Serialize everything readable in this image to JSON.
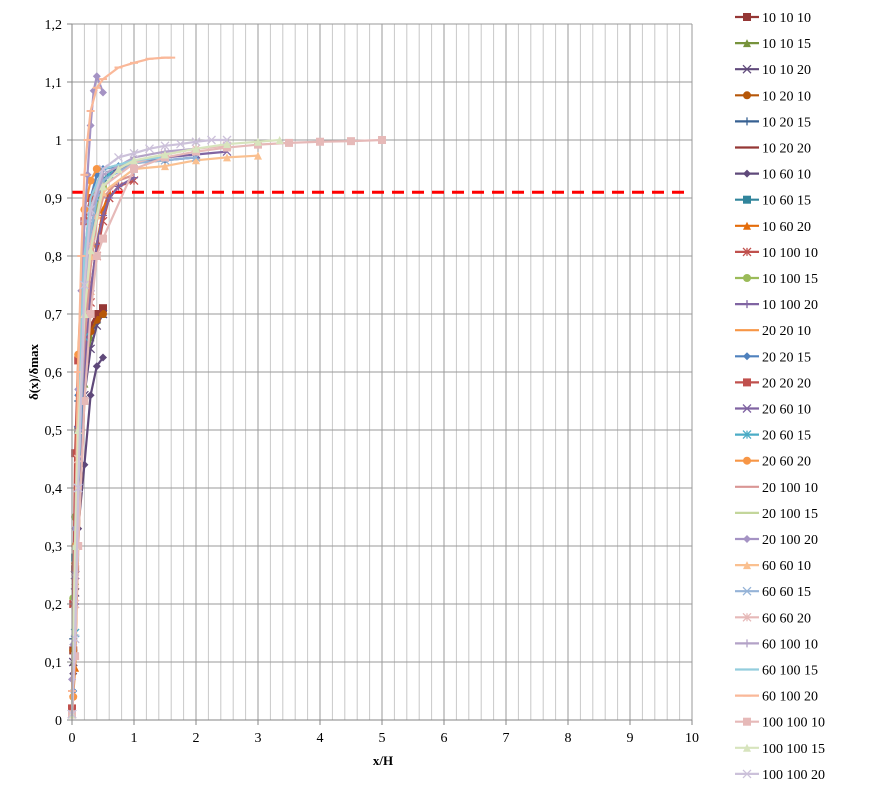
{
  "chart_data": {
    "type": "line",
    "title": "",
    "xlabel": "x/H",
    "ylabel": "δ(x)/δmax",
    "xlim": [
      0,
      10
    ],
    "ylim": [
      0,
      1.2
    ],
    "xticks": [
      "0",
      "1",
      "2",
      "3",
      "4",
      "5",
      "6",
      "7",
      "8",
      "9",
      "10"
    ],
    "yticks": [
      "0",
      "0,1",
      "0,2",
      "0,3",
      "0,4",
      "0,5",
      "0,6",
      "0,7",
      "0,8",
      "0,9",
      "1",
      "1,1",
      "1,2"
    ],
    "grid": true,
    "legend": "right",
    "reference_line": {
      "y": 0.91,
      "color": "#FF0000",
      "style": "dashed"
    },
    "series": [
      {
        "name": "10 10 10",
        "color": "#953735",
        "marker": "square",
        "x": [
          0,
          0.02,
          0.05,
          0.1,
          0.2,
          0.3,
          0.4,
          0.5
        ],
        "y": [
          0.01,
          0.12,
          0.26,
          0.46,
          0.62,
          0.68,
          0.7,
          0.71
        ]
      },
      {
        "name": "10 10 15",
        "color": "#77933C",
        "marker": "triangle",
        "x": [
          0,
          0.02,
          0.05,
          0.1,
          0.2,
          0.3,
          0.4,
          0.5
        ],
        "y": [
          0.01,
          0.1,
          0.24,
          0.42,
          0.58,
          0.66,
          0.69,
          0.7
        ]
      },
      {
        "name": "10 10 20",
        "color": "#604A7B",
        "marker": "x",
        "x": [
          0,
          0.02,
          0.05,
          0.1,
          0.2,
          0.3,
          0.4,
          0.5
        ],
        "y": [
          0.01,
          0.1,
          0.22,
          0.4,
          0.56,
          0.64,
          0.68,
          0.7
        ]
      },
      {
        "name": "10 20 10",
        "color": "#B65708",
        "marker": "circle",
        "x": [
          0,
          0.02,
          0.05,
          0.1,
          0.2,
          0.3,
          0.4,
          0.5
        ],
        "y": [
          0.01,
          0.12,
          0.27,
          0.46,
          0.62,
          0.67,
          0.69,
          0.7
        ]
      },
      {
        "name": "10 20 15",
        "color": "#376092",
        "marker": "plus",
        "x": [
          0,
          0.02,
          0.05,
          0.1,
          0.2,
          0.3,
          0.4,
          0.5,
          0.75,
          1
        ],
        "y": [
          0.01,
          0.14,
          0.3,
          0.55,
          0.78,
          0.88,
          0.92,
          0.94,
          0.95,
          0.96
        ]
      },
      {
        "name": "10 20 20",
        "color": "#953735",
        "marker": "none",
        "x": [
          0,
          0.05,
          0.1,
          0.2,
          0.3,
          0.4,
          0.5
        ],
        "y": [
          0.01,
          0.28,
          0.48,
          0.64,
          0.68,
          0.7,
          0.71
        ]
      },
      {
        "name": "10 60 10",
        "color": "#5F497A",
        "marker": "diamond",
        "x": [
          0,
          0.02,
          0.05,
          0.1,
          0.2,
          0.3,
          0.4,
          0.5
        ],
        "y": [
          0.01,
          0.08,
          0.2,
          0.33,
          0.44,
          0.56,
          0.61,
          0.625
        ]
      },
      {
        "name": "10 60 15",
        "color": "#31859C",
        "marker": "square",
        "x": [
          0,
          0.05,
          0.1,
          0.2,
          0.3,
          0.4,
          0.5,
          0.6
        ],
        "y": [
          0.01,
          0.28,
          0.5,
          0.72,
          0.84,
          0.9,
          0.93,
          0.94
        ]
      },
      {
        "name": "10 60 20",
        "color": "#E46C0A",
        "marker": "triangle",
        "x": [
          0,
          0.05,
          0.1,
          0.2,
          0.3,
          0.4,
          0.5,
          0.6
        ],
        "y": [
          0.01,
          0.09,
          0.3,
          0.55,
          0.74,
          0.82,
          0.88,
          0.91
        ]
      },
      {
        "name": "10 100 10",
        "color": "#C0504D",
        "marker": "star",
        "x": [
          0,
          0.05,
          0.1,
          0.2,
          0.3,
          0.4,
          0.5,
          0.6,
          0.75,
          1
        ],
        "y": [
          0.01,
          0.25,
          0.45,
          0.62,
          0.72,
          0.8,
          0.86,
          0.9,
          0.92,
          0.93
        ]
      },
      {
        "name": "10 100 15",
        "color": "#9BBB59",
        "marker": "circle",
        "x": [
          0,
          0.02,
          0.05,
          0.1,
          0.2,
          0.3,
          0.4,
          0.5
        ],
        "y": [
          0.01,
          0.21,
          0.35,
          0.5,
          0.66,
          0.8,
          0.88,
          0.92
        ]
      },
      {
        "name": "10 100 20",
        "color": "#8064A2",
        "marker": "plus",
        "x": [
          0,
          0.05,
          0.1,
          0.2,
          0.3,
          0.4,
          0.5,
          0.6,
          0.75,
          1
        ],
        "y": [
          0.01,
          0.2,
          0.4,
          0.6,
          0.74,
          0.82,
          0.87,
          0.9,
          0.92,
          0.935
        ]
      },
      {
        "name": "20 20 10",
        "color": "#F79646",
        "marker": "none",
        "x": [
          0,
          0.05,
          0.1,
          0.2,
          0.3,
          0.4,
          0.5
        ],
        "y": [
          0.01,
          0.3,
          0.58,
          0.8,
          0.88,
          0.92,
          0.94
        ]
      },
      {
        "name": "20 20 15",
        "color": "#4F81BD",
        "marker": "diamond",
        "x": [
          0,
          0.02,
          0.05,
          0.1,
          0.2,
          0.3,
          0.4,
          0.5,
          0.75,
          1,
          1.5,
          2
        ],
        "y": [
          0.01,
          0.05,
          0.3,
          0.56,
          0.8,
          0.9,
          0.94,
          0.95,
          0.955,
          0.96,
          0.965,
          0.97
        ]
      },
      {
        "name": "20 20 20",
        "color": "#C0504D",
        "marker": "square",
        "x": [
          0,
          0.02,
          0.05,
          0.1,
          0.2,
          0.3,
          0.4
        ],
        "y": [
          0.02,
          0.2,
          0.46,
          0.62,
          0.86,
          0.9,
          0.91
        ]
      },
      {
        "name": "20 60 10",
        "color": "#8064A2",
        "marker": "x",
        "x": [
          0,
          0.05,
          0.1,
          0.2,
          0.3,
          0.4,
          0.5,
          0.75,
          1,
          1.5,
          2,
          2.5
        ],
        "y": [
          0.01,
          0.25,
          0.5,
          0.74,
          0.84,
          0.9,
          0.93,
          0.95,
          0.96,
          0.97,
          0.975,
          0.98
        ]
      },
      {
        "name": "20 60 15",
        "color": "#4BACC6",
        "marker": "star",
        "x": [
          0,
          0.05,
          0.1,
          0.2,
          0.3,
          0.4,
          0.5,
          0.6
        ],
        "y": [
          0.01,
          0.15,
          0.4,
          0.66,
          0.82,
          0.9,
          0.93,
          0.94
        ]
      },
      {
        "name": "20 60 20",
        "color": "#F79646",
        "marker": "circle",
        "x": [
          0,
          0.02,
          0.05,
          0.1,
          0.2,
          0.3,
          0.4
        ],
        "y": [
          0.01,
          0.04,
          0.3,
          0.63,
          0.88,
          0.93,
          0.95
        ]
      },
      {
        "name": "20 100 10",
        "color": "#D99694",
        "marker": "none",
        "x": [
          0,
          0.05,
          0.1,
          0.2,
          0.3,
          0.4,
          0.5,
          0.75,
          1
        ],
        "y": [
          0.01,
          0.25,
          0.45,
          0.65,
          0.78,
          0.86,
          0.9,
          0.93,
          0.94
        ]
      },
      {
        "name": "20 100 15",
        "color": "#C3D69B",
        "marker": "none",
        "x": [
          0,
          0.05,
          0.1,
          0.2,
          0.3,
          0.4,
          0.5,
          0.75,
          1,
          1.5
        ],
        "y": [
          0.01,
          0.3,
          0.55,
          0.78,
          0.87,
          0.92,
          0.94,
          0.955,
          0.96,
          0.965
        ]
      },
      {
        "name": "20 100 20",
        "color": "#A593C4",
        "marker": "diamond",
        "x": [
          0,
          0.02,
          0.05,
          0.1,
          0.15,
          0.2,
          0.25,
          0.3,
          0.35,
          0.4,
          0.5
        ],
        "y": [
          0.07,
          0.13,
          0.33,
          0.57,
          0.74,
          0.86,
          0.94,
          1.025,
          1.085,
          1.11,
          1.082
        ]
      },
      {
        "name": "60 60 10",
        "color": "#FAC090",
        "marker": "triangle",
        "x": [
          0,
          0.05,
          0.1,
          0.2,
          0.3,
          0.4,
          0.5,
          1,
          1.5,
          2,
          2.5,
          3
        ],
        "y": [
          0.01,
          0.3,
          0.5,
          0.7,
          0.8,
          0.87,
          0.91,
          0.95,
          0.955,
          0.965,
          0.97,
          0.973
        ]
      },
      {
        "name": "60 60 15",
        "color": "#95B3D7",
        "marker": "x",
        "x": [
          0,
          0.05,
          0.1,
          0.2,
          0.3,
          0.4,
          0.5,
          1,
          1.5,
          2
        ],
        "y": [
          0.01,
          0.14,
          0.4,
          0.7,
          0.84,
          0.9,
          0.93,
          0.96,
          0.965,
          0.97
        ]
      },
      {
        "name": "60 60 20",
        "color": "#E6B9B8",
        "marker": "star",
        "x": [
          0,
          0.05,
          0.1,
          0.2,
          0.3,
          0.5,
          1,
          1.5,
          2,
          2.5
        ],
        "y": [
          0.01,
          0.2,
          0.45,
          0.7,
          0.82,
          0.92,
          0.96,
          0.975,
          0.985,
          0.99
        ]
      },
      {
        "name": "60 100 10",
        "color": "#B3A2C7",
        "marker": "plus",
        "x": [
          0,
          0.05,
          0.1,
          0.2,
          0.3,
          0.5,
          1,
          1.5,
          2
        ],
        "y": [
          0.01,
          0.25,
          0.5,
          0.75,
          0.87,
          0.94,
          0.97,
          0.98,
          0.985
        ]
      },
      {
        "name": "60 100 15",
        "color": "#93CDDD",
        "marker": "none",
        "x": [
          0,
          0.05,
          0.1,
          0.2,
          0.3,
          0.5,
          1,
          1.5
        ],
        "y": [
          0.01,
          0.25,
          0.55,
          0.8,
          0.9,
          0.95,
          0.965,
          0.97
        ]
      },
      {
        "name": "60 100 20",
        "color": "#FAB899",
        "marker": "dash",
        "x": [
          0,
          0.05,
          0.1,
          0.15,
          0.2,
          0.25,
          0.3,
          0.4,
          0.5,
          0.75,
          1,
          1.25,
          1.5,
          1.6
        ],
        "y": [
          0.05,
          0.3,
          0.6,
          0.8,
          0.94,
          1.0,
          1.05,
          1.09,
          1.105,
          1.125,
          1.133,
          1.14,
          1.142,
          1.142
        ]
      },
      {
        "name": "100 100 10",
        "color": "#E6B9B8",
        "marker": "square",
        "x": [
          0,
          0.05,
          0.1,
          0.2,
          0.3,
          0.4,
          0.5,
          1,
          1.5,
          2,
          2.5,
          3,
          3.5,
          4,
          4.5,
          5
        ],
        "y": [
          0.01,
          0.11,
          0.3,
          0.55,
          0.7,
          0.8,
          0.83,
          0.95,
          0.97,
          0.98,
          0.987,
          0.992,
          0.995,
          0.997,
          0.998,
          1.0
        ]
      },
      {
        "name": "100 100 15",
        "color": "#D7E4BD",
        "marker": "triangle",
        "x": [
          0,
          0.05,
          0.1,
          0.2,
          0.3,
          0.5,
          0.75,
          1,
          1.5,
          2,
          2.5,
          3,
          3.35
        ],
        "y": [
          0.01,
          0.3,
          0.5,
          0.7,
          0.81,
          0.92,
          0.95,
          0.965,
          0.975,
          0.985,
          0.993,
          0.997,
          1.0
        ]
      },
      {
        "name": "100 100 20",
        "color": "#CCC1DA",
        "marker": "x",
        "x": [
          0,
          0.05,
          0.1,
          0.2,
          0.3,
          0.5,
          0.75,
          1,
          1.25,
          1.5,
          1.75,
          2,
          2.25,
          2.5
        ],
        "y": [
          0.01,
          0.14,
          0.4,
          0.75,
          0.88,
          0.95,
          0.97,
          0.977,
          0.985,
          0.99,
          0.993,
          0.997,
          1.0,
          1.0
        ]
      }
    ]
  }
}
